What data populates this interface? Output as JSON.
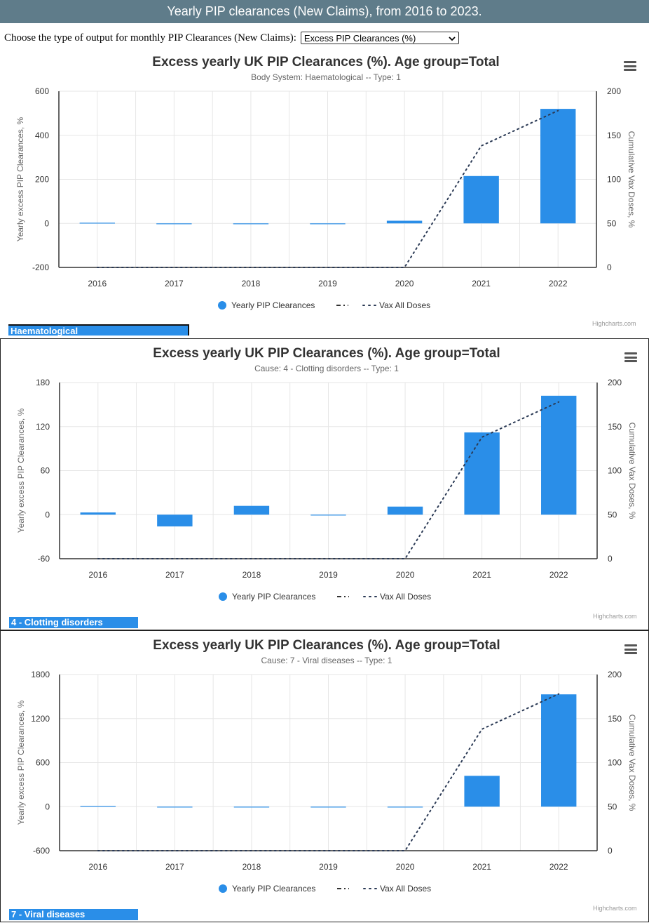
{
  "header": {
    "title": "Yearly PIP clearances (New Claims), from 2016 to 2023."
  },
  "output_selector": {
    "label": "Choose the type of output for monthly PIP Clearances (New Claims):",
    "selected": "Excess PIP Clearances (%)"
  },
  "colors": {
    "bar": "#2a8ee8",
    "line": "#2b3a55",
    "header_bg": "#5f7c8a",
    "grid": "#e6e6e6"
  },
  "credits": "Highcharts.com",
  "chart_data": [
    {
      "type": "bar",
      "title": "Excess yearly UK PIP Clearances (%). Age group=Total",
      "subtitle": "Body System: Haematological -- Type: 1",
      "categories": [
        "2016",
        "2017",
        "2018",
        "2019",
        "2020",
        "2021",
        "2022"
      ],
      "ylabel": "Yearly excess PIP Clearances, %",
      "y2label": "Cumulative Vax Doses, %",
      "ylim": [
        -200,
        600
      ],
      "yticks": [
        "600",
        "400",
        "200",
        "0",
        "-200"
      ],
      "y2lim": [
        0,
        200
      ],
      "y2ticks": [
        "200",
        "150",
        "100",
        "50",
        "0"
      ],
      "series": [
        {
          "name": "Yearly PIP Clearances",
          "values": [
            3,
            0,
            0,
            -3,
            12,
            215,
            520
          ]
        },
        {
          "name": "Vax All Doses",
          "values": [
            0,
            0,
            0,
            0,
            0,
            138,
            178
          ]
        }
      ],
      "legend": "bottom-center",
      "cause_label": "Haematological"
    },
    {
      "type": "bar",
      "title": "Excess yearly UK PIP Clearances (%). Age group=Total",
      "subtitle": "Cause: 4 - Clotting disorders -- Type: 1",
      "categories": [
        "2016",
        "2017",
        "2018",
        "2019",
        "2020",
        "2021",
        "2022"
      ],
      "ylabel": "Yearly excess PIP Clearances, %",
      "y2label": "Cumulative Vax Doses, %",
      "ylim": [
        -60,
        180
      ],
      "yticks": [
        "180",
        "120",
        "60",
        "0",
        "-60"
      ],
      "y2lim": [
        0,
        200
      ],
      "y2ticks": [
        "200",
        "150",
        "100",
        "50",
        "0"
      ],
      "series": [
        {
          "name": "Yearly PIP Clearances",
          "values": [
            3,
            -16,
            12,
            0,
            11,
            112,
            162
          ]
        },
        {
          "name": "Vax All Doses",
          "values": [
            0,
            0,
            0,
            0,
            0,
            138,
            178
          ]
        }
      ],
      "legend": "bottom-center",
      "cause_label": "4 - Clotting disorders"
    },
    {
      "type": "bar",
      "title": "Excess yearly UK PIP Clearances (%). Age group=Total",
      "subtitle": "Cause: 7 - Viral diseases -- Type: 1",
      "categories": [
        "2016",
        "2017",
        "2018",
        "2019",
        "2020",
        "2021",
        "2022"
      ],
      "ylabel": "Yearly excess PIP Clearances, %",
      "y2label": "Cumulative Vax Doses, %",
      "ylim": [
        -600,
        1800
      ],
      "yticks": [
        "1800",
        "1200",
        "600",
        "0",
        "-600"
      ],
      "y2lim": [
        0,
        200
      ],
      "y2ticks": [
        "200",
        "150",
        "100",
        "50",
        "0"
      ],
      "series": [
        {
          "name": "Yearly PIP Clearances",
          "values": [
            10,
            0,
            0,
            0,
            0,
            420,
            1530
          ]
        },
        {
          "name": "Vax All Doses",
          "values": [
            0,
            0,
            0,
            0,
            0,
            138,
            178
          ]
        }
      ],
      "legend": "bottom-center",
      "cause_label": "7 - Viral diseases"
    }
  ]
}
